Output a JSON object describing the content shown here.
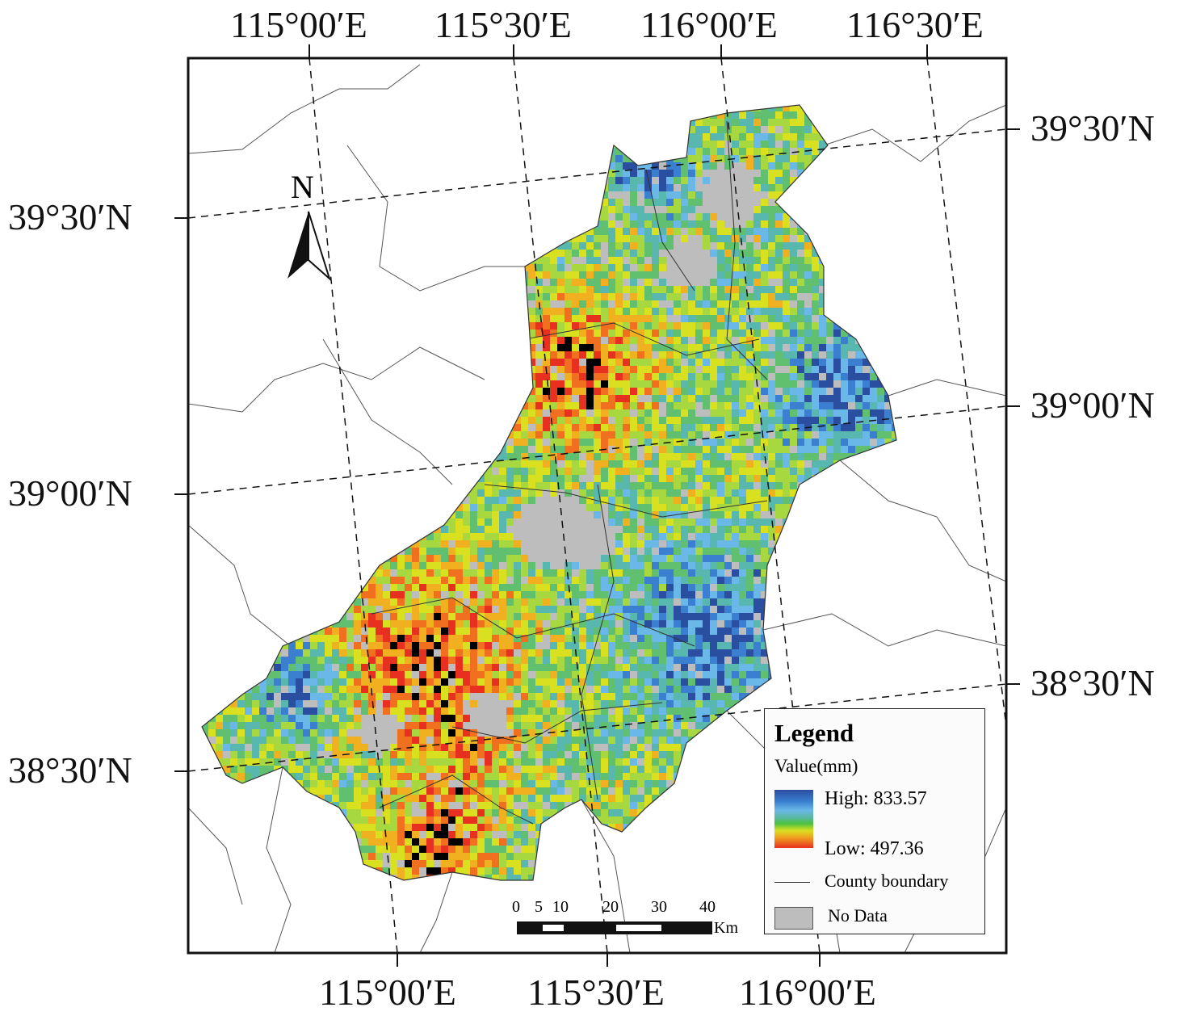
{
  "graticule": {
    "top_labels": [
      "115°00′E",
      "115°30′E",
      "116°00′E",
      "116°30′E"
    ],
    "bottom_labels": [
      "115°00′E",
      "115°30′E",
      "116°00′E"
    ],
    "left_labels": [
      "39°30′N",
      "39°00′N",
      "38°30′N"
    ],
    "right_labels": [
      "39°30′N",
      "39°00′N",
      "38°30′N"
    ]
  },
  "north_arrow": {
    "label": "N"
  },
  "legend": {
    "title": "Legend",
    "subtitle": "Value(mm)",
    "high": "High: 833.57",
    "low": "Low: 497.36",
    "high_value": 833.57,
    "low_value": 497.36,
    "ramp_colors": [
      "#2a4fa0",
      "#6ab8e8",
      "#4cc040",
      "#d8e020",
      "#f0a020",
      "#e83020"
    ],
    "county_boundary": "County boundary",
    "no_data": "No Data",
    "no_data_color": "#bdbdbd"
  },
  "scale_bar": {
    "ticks": [
      "0",
      "5",
      "10",
      "20",
      "30",
      "40"
    ],
    "unit": "Km"
  }
}
